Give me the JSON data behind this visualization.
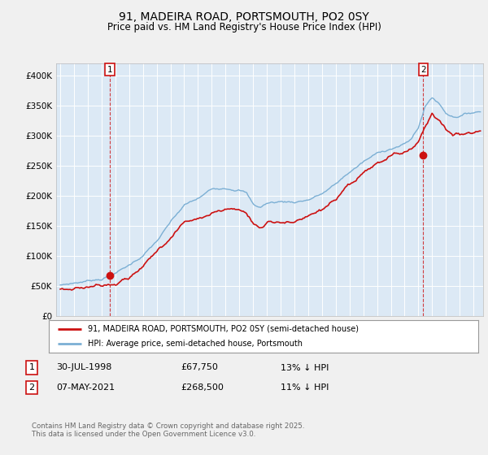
{
  "title_line1": "91, MADEIRA ROAD, PORTSMOUTH, PO2 0SY",
  "title_line2": "Price paid vs. HM Land Registry's House Price Index (HPI)",
  "legend_line1": "91, MADEIRA ROAD, PORTSMOUTH, PO2 0SY (semi-detached house)",
  "legend_line2": "HPI: Average price, semi-detached house, Portsmouth",
  "annotation1_num": "1",
  "annotation1_date": "30-JUL-1998",
  "annotation1_price": "£67,750",
  "annotation1_note": "13% ↓ HPI",
  "annotation2_num": "2",
  "annotation2_date": "07-MAY-2021",
  "annotation2_price": "£268,500",
  "annotation2_note": "11% ↓ HPI",
  "footer": "Contains HM Land Registry data © Crown copyright and database right 2025.\nThis data is licensed under the Open Government Licence v3.0.",
  "hpi_color": "#7bafd4",
  "price_color": "#cc1111",
  "marker_color": "#cc1111",
  "marker1_x": 1998.58,
  "marker1_y": 67750,
  "marker2_x": 2021.36,
  "marker2_y": 268500,
  "ylim": [
    0,
    420000
  ],
  "yticks": [
    0,
    50000,
    100000,
    150000,
    200000,
    250000,
    300000,
    350000,
    400000
  ],
  "xlim_left": 1994.7,
  "xlim_right": 2025.7,
  "background_color": "#f0f0f0",
  "plot_bg": "#dce9f5"
}
